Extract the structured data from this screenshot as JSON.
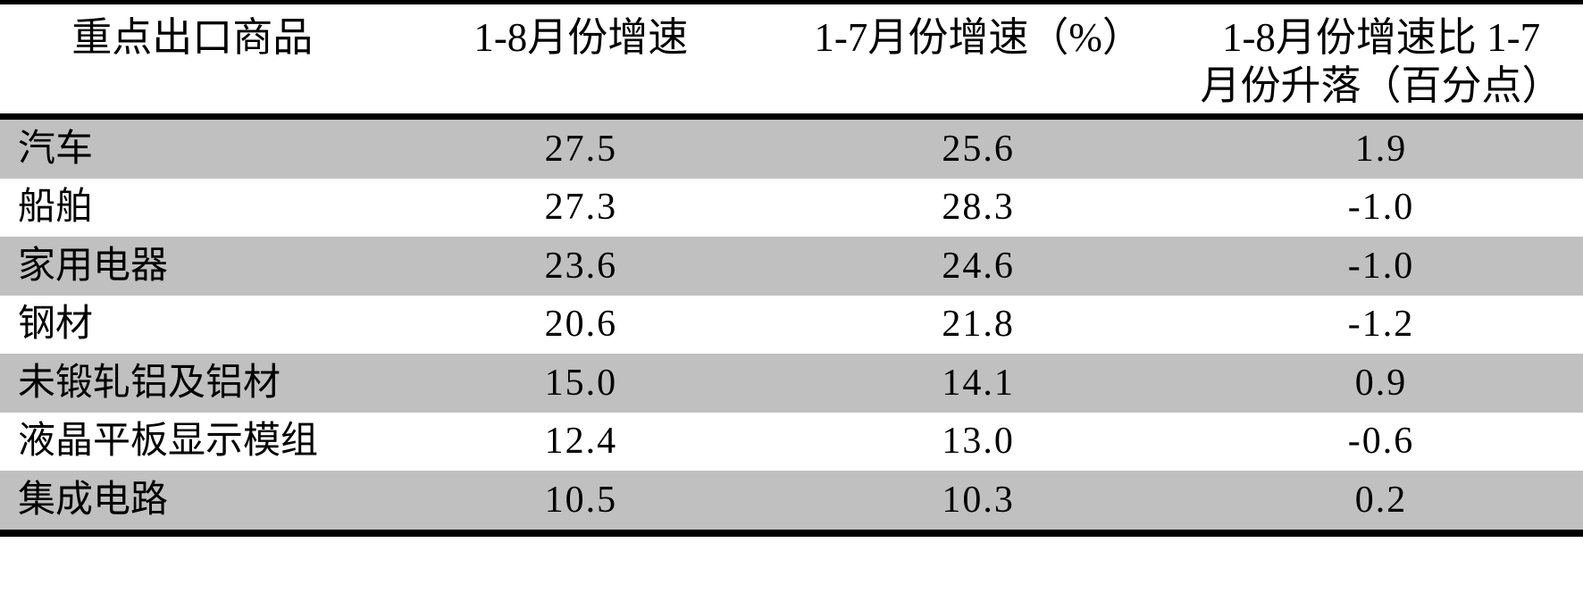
{
  "table": {
    "headers": [
      "重点出口商品",
      "1-8月份增速",
      "1-7月份增速（%）",
      "1-8月份增速比 1-7\n月份升落（百分点）"
    ],
    "rows": [
      {
        "commodity": "汽车",
        "growth_1_8": "27.5",
        "growth_1_7": "25.6",
        "change": "1.9"
      },
      {
        "commodity": "船舶",
        "growth_1_8": "27.3",
        "growth_1_7": "28.3",
        "change": "-1.0"
      },
      {
        "commodity": "家用电器",
        "growth_1_8": "23.6",
        "growth_1_7": "24.6",
        "change": "-1.0"
      },
      {
        "commodity": "钢材",
        "growth_1_8": "20.6",
        "growth_1_7": "21.8",
        "change": "-1.2"
      },
      {
        "commodity": "未锻轧铝及铝材",
        "growth_1_8": "15.0",
        "growth_1_7": "14.1",
        "change": "0.9"
      },
      {
        "commodity": "液晶平板显示模组",
        "growth_1_8": "12.4",
        "growth_1_7": "13.0",
        "change": "-0.6"
      },
      {
        "commodity": "集成电路",
        "growth_1_8": "10.5",
        "growth_1_7": "10.3",
        "change": "0.2"
      }
    ],
    "colors": {
      "row_alt_background": "#c0c0c0",
      "rule_color": "#000000",
      "text_color": "#000000",
      "background": "#ffffff"
    }
  },
  "chart_data": {
    "type": "table",
    "columns": [
      "重点出口商品",
      "1-8月份增速",
      "1-7月份增速（%）",
      "1-8月份增速比1-7月份升落（百分点）"
    ],
    "rows": [
      [
        "汽车",
        27.5,
        25.6,
        1.9
      ],
      [
        "船舶",
        27.3,
        28.3,
        -1.0
      ],
      [
        "家用电器",
        23.6,
        24.6,
        -1.0
      ],
      [
        "钢材",
        20.6,
        21.8,
        -1.2
      ],
      [
        "未锻轧铝及铝材",
        15.0,
        14.1,
        0.9
      ],
      [
        "液晶平板显示模组",
        12.4,
        13.0,
        -0.6
      ],
      [
        "集成电路",
        10.5,
        10.3,
        0.2
      ]
    ]
  }
}
